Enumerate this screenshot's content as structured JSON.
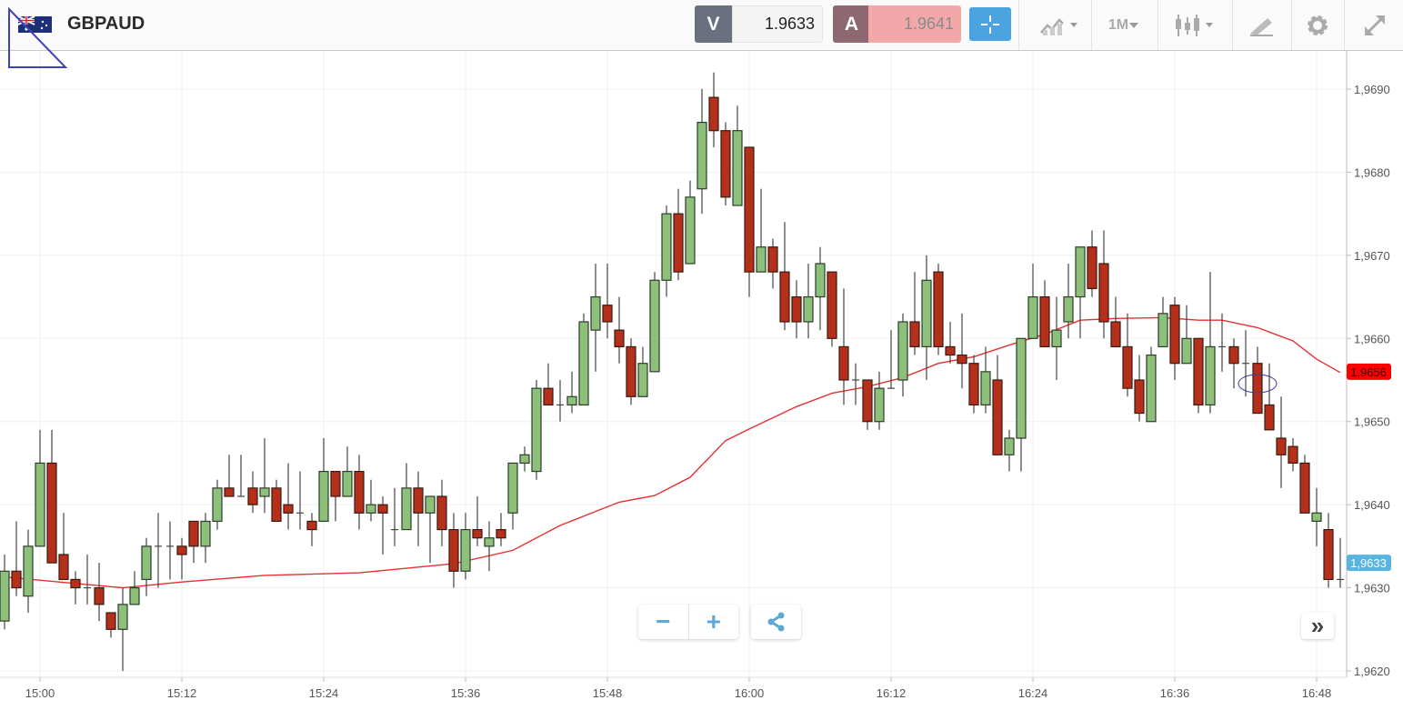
{
  "header": {
    "flag_icon": "gb-au-flag-icon",
    "symbol": "GBPAUD",
    "sell": {
      "label": "V",
      "price": "1.9633"
    },
    "buy": {
      "label": "A",
      "price": "1.9641"
    },
    "timeframe": "1M",
    "icons": [
      "crosshair-icon",
      "chart-type-icon",
      "candlestick-icon",
      "drawing-tools-icon",
      "gear-icon",
      "expand-icon"
    ]
  },
  "controls": {
    "zoom_out": "−",
    "zoom_in": "+",
    "share_icon": "share-icon",
    "scroll_right": "»"
  },
  "colors": {
    "up": "#8dc07a",
    "down": "#b5301a",
    "moving_average": "#e53030",
    "sell": "#6b7080",
    "buy": "#8e6870",
    "accent": "#4aa3df"
  },
  "chart_data": {
    "type": "candlestick",
    "interval": "1M",
    "y_tick_labels": [
      "1,9620",
      "1,9630",
      "1,9640",
      "1,9650",
      "1,9660",
      "1,9670",
      "1,9680",
      "1,9690"
    ],
    "y_ticks": [
      1.962,
      1.963,
      1.964,
      1.965,
      1.966,
      1.967,
      1.968,
      1.969
    ],
    "x_tick_labels": [
      "15:00",
      "15:12",
      "15:24",
      "15:36",
      "15:48",
      "16:00",
      "16:12",
      "16:24",
      "16:36",
      "16:48"
    ],
    "ylim": [
      1.962,
      1.969
    ],
    "grid": true,
    "price_tags": [
      {
        "label": "1,9656",
        "value": 1.9656,
        "color": "#ff0000"
      },
      {
        "label": "1,9633",
        "value": 1.9633,
        "color": "#5ab4e0"
      }
    ],
    "candles_columns": [
      "time",
      "open",
      "high",
      "low",
      "close"
    ],
    "candles": [
      [
        "14:57",
        1.9626,
        1.9634,
        1.9625,
        1.9632
      ],
      [
        "14:58",
        1.9632,
        1.9638,
        1.9629,
        1.963
      ],
      [
        "14:59",
        1.9629,
        1.9637,
        1.9627,
        1.9635
      ],
      [
        "15:00",
        1.9635,
        1.9649,
        1.9635,
        1.9645
      ],
      [
        "15:01",
        1.9645,
        1.9649,
        1.9633,
        1.9633
      ],
      [
        "15:02",
        1.9634,
        1.9639,
        1.9631,
        1.9631
      ],
      [
        "15:03",
        1.9631,
        1.9632,
        1.9628,
        1.963
      ],
      [
        "15:04",
        1.963,
        1.9634,
        1.9628,
        1.963
      ],
      [
        "15:05",
        1.963,
        1.9633,
        1.9626,
        1.9628
      ],
      [
        "15:06",
        1.9627,
        1.9627,
        1.9624,
        1.9625
      ],
      [
        "15:07",
        1.9625,
        1.963,
        1.962,
        1.9628
      ],
      [
        "15:08",
        1.9628,
        1.9632,
        1.9628,
        1.963
      ],
      [
        "15:09",
        1.9631,
        1.9636,
        1.9629,
        1.9635
      ],
      [
        "15:10",
        1.9635,
        1.9639,
        1.963,
        1.9635
      ],
      [
        "15:11",
        1.9635,
        1.9638,
        1.9631,
        1.9635
      ],
      [
        "15:12",
        1.9635,
        1.9636,
        1.9631,
        1.9634
      ],
      [
        "15:13",
        1.9638,
        1.9638,
        1.9633,
        1.9635
      ],
      [
        "15:14",
        1.9635,
        1.9639,
        1.9633,
        1.9638
      ],
      [
        "15:15",
        1.9638,
        1.9643,
        1.9637,
        1.9642
      ],
      [
        "15:16",
        1.9642,
        1.9646,
        1.9641,
        1.9641
      ],
      [
        "15:17",
        1.9641,
        1.9646,
        1.9641,
        1.9641
      ],
      [
        "15:18",
        1.9642,
        1.9644,
        1.9639,
        1.964
      ],
      [
        "15:19",
        1.9641,
        1.9648,
        1.9639,
        1.9642
      ],
      [
        "15:20",
        1.9642,
        1.9643,
        1.9638,
        1.9638
      ],
      [
        "15:21",
        1.964,
        1.9645,
        1.9637,
        1.9639
      ],
      [
        "15:22",
        1.9639,
        1.9644,
        1.9637,
        1.9639
      ],
      [
        "15:23",
        1.9638,
        1.9639,
        1.9635,
        1.9637
      ],
      [
        "15:24",
        1.9638,
        1.9648,
        1.9638,
        1.9644
      ],
      [
        "15:25",
        1.9644,
        1.9644,
        1.9638,
        1.9641
      ],
      [
        "15:26",
        1.9641,
        1.9647,
        1.9641,
        1.9644
      ],
      [
        "15:27",
        1.9644,
        1.9646,
        1.9637,
        1.9639
      ],
      [
        "15:28",
        1.9639,
        1.9643,
        1.9638,
        1.964
      ],
      [
        "15:29",
        1.964,
        1.9641,
        1.9634,
        1.9639
      ],
      [
        "15:30",
        1.9637,
        1.9642,
        1.9635,
        1.9637
      ],
      [
        "15:31",
        1.9637,
        1.9645,
        1.9637,
        1.9642
      ],
      [
        "15:32",
        1.9642,
        1.9644,
        1.9635,
        1.9639
      ],
      [
        "15:33",
        1.9639,
        1.9641,
        1.9633,
        1.9641
      ],
      [
        "15:34",
        1.9641,
        1.9643,
        1.9635,
        1.9637
      ],
      [
        "15:35",
        1.9637,
        1.9639,
        1.963,
        1.9632
      ],
      [
        "15:36",
        1.9632,
        1.9639,
        1.9631,
        1.9637
      ],
      [
        "15:37",
        1.9637,
        1.9641,
        1.9635,
        1.9636
      ],
      [
        "15:38",
        1.9635,
        1.9638,
        1.9632,
        1.9636
      ],
      [
        "15:39",
        1.9637,
        1.9639,
        1.9635,
        1.9636
      ],
      [
        "15:40",
        1.9639,
        1.9645,
        1.9637,
        1.9645
      ],
      [
        "15:41",
        1.9645,
        1.9647,
        1.9644,
        1.9646
      ],
      [
        "15:42",
        1.9644,
        1.9655,
        1.9643,
        1.9654
      ],
      [
        "15:43",
        1.9654,
        1.9657,
        1.9652,
        1.9652
      ],
      [
        "15:44",
        1.9652,
        1.9655,
        1.965,
        1.9652
      ],
      [
        "15:45",
        1.9652,
        1.9656,
        1.9651,
        1.9653
      ],
      [
        "15:46",
        1.9652,
        1.9663,
        1.9652,
        1.9662
      ],
      [
        "15:47",
        1.9661,
        1.9669,
        1.9656,
        1.9665
      ],
      [
        "15:48",
        1.9664,
        1.9669,
        1.966,
        1.9662
      ],
      [
        "15:49",
        1.9661,
        1.9665,
        1.9657,
        1.9659
      ],
      [
        "15:50",
        1.9659,
        1.966,
        1.9652,
        1.9653
      ],
      [
        "15:51",
        1.9653,
        1.9659,
        1.9653,
        1.9657
      ],
      [
        "15:52",
        1.9656,
        1.9668,
        1.9656,
        1.9667
      ],
      [
        "15:53",
        1.9667,
        1.9676,
        1.9665,
        1.9675
      ],
      [
        "15:54",
        1.9675,
        1.9678,
        1.9667,
        1.9668
      ],
      [
        "15:55",
        1.9669,
        1.9679,
        1.9669,
        1.9677
      ],
      [
        "15:56",
        1.9678,
        1.969,
        1.9675,
        1.9686
      ],
      [
        "15:57",
        1.9689,
        1.9692,
        1.9683,
        1.9685
      ],
      [
        "15:58",
        1.9685,
        1.9686,
        1.9676,
        1.9677
      ],
      [
        "15:59",
        1.9676,
        1.9688,
        1.9676,
        1.9685
      ],
      [
        "16:00",
        1.9683,
        1.9683,
        1.9665,
        1.9668
      ],
      [
        "16:01",
        1.9668,
        1.9678,
        1.9668,
        1.9671
      ],
      [
        "16:02",
        1.9671,
        1.9672,
        1.9666,
        1.9668
      ],
      [
        "16:03",
        1.9668,
        1.9674,
        1.9661,
        1.9662
      ],
      [
        "16:04",
        1.9665,
        1.9667,
        1.966,
        1.9662
      ],
      [
        "16:05",
        1.9662,
        1.9669,
        1.966,
        1.9665
      ],
      [
        "16:06",
        1.9665,
        1.9671,
        1.9661,
        1.9669
      ],
      [
        "16:07",
        1.9668,
        1.9668,
        1.9659,
        1.966
      ],
      [
        "16:08",
        1.9659,
        1.9666,
        1.9652,
        1.9655
      ],
      [
        "16:09",
        1.9655,
        1.9657,
        1.9652,
        1.9655
      ],
      [
        "16:10",
        1.9655,
        1.9655,
        1.9649,
        1.965
      ],
      [
        "16:11",
        1.965,
        1.9656,
        1.9649,
        1.9654
      ],
      [
        "16:12",
        1.9654,
        1.9661,
        1.9654,
        1.9654
      ],
      [
        "16:13",
        1.9655,
        1.9663,
        1.9653,
        1.9662
      ],
      [
        "16:14",
        1.9662,
        1.9668,
        1.9658,
        1.9659
      ],
      [
        "16:15",
        1.9659,
        1.967,
        1.9655,
        1.9667
      ],
      [
        "16:16",
        1.9668,
        1.9669,
        1.9658,
        1.9659
      ],
      [
        "16:17",
        1.9659,
        1.9662,
        1.9657,
        1.9658
      ],
      [
        "16:18",
        1.9658,
        1.9663,
        1.9654,
        1.9657
      ],
      [
        "16:19",
        1.9657,
        1.9658,
        1.9651,
        1.9652
      ],
      [
        "16:20",
        1.9652,
        1.9659,
        1.9651,
        1.9656
      ],
      [
        "16:21",
        1.9655,
        1.9658,
        1.9646,
        1.9646
      ],
      [
        "16:22",
        1.9646,
        1.9649,
        1.9644,
        1.9648
      ],
      [
        "16:23",
        1.9648,
        1.966,
        1.9644,
        1.966
      ],
      [
        "16:24",
        1.966,
        1.9669,
        1.966,
        1.9665
      ],
      [
        "16:25",
        1.9665,
        1.9667,
        1.9659,
        1.9659
      ],
      [
        "16:26",
        1.9659,
        1.9665,
        1.9655,
        1.9661
      ],
      [
        "16:27",
        1.9662,
        1.9669,
        1.966,
        1.9665
      ],
      [
        "16:28",
        1.9665,
        1.9671,
        1.966,
        1.9671
      ],
      [
        "16:29",
        1.9671,
        1.9673,
        1.9665,
        1.9666
      ],
      [
        "16:30",
        1.9669,
        1.9673,
        1.966,
        1.9662
      ],
      [
        "16:31",
        1.9662,
        1.9665,
        1.9659,
        1.9659
      ],
      [
        "16:32",
        1.9659,
        1.9663,
        1.9653,
        1.9654
      ],
      [
        "16:33",
        1.9655,
        1.9658,
        1.965,
        1.9651
      ],
      [
        "16:34",
        1.965,
        1.9659,
        1.965,
        1.9658
      ],
      [
        "16:35",
        1.9659,
        1.9665,
        1.9659,
        1.9663
      ],
      [
        "16:36",
        1.9664,
        1.9665,
        1.9655,
        1.9657
      ],
      [
        "16:37",
        1.9657,
        1.9664,
        1.9657,
        1.966
      ],
      [
        "16:38",
        1.966,
        1.966,
        1.9651,
        1.9652
      ],
      [
        "16:39",
        1.9652,
        1.9668,
        1.9651,
        1.9659
      ],
      [
        "16:40",
        1.9659,
        1.9663,
        1.9656,
        1.9659
      ],
      [
        "16:41",
        1.9659,
        1.966,
        1.9654,
        1.9657
      ],
      [
        "16:42",
        1.9657,
        1.9661,
        1.9653,
        1.9657
      ],
      [
        "16:43",
        1.9657,
        1.9659,
        1.9651,
        1.9651
      ],
      [
        "16:44",
        1.9652,
        1.9657,
        1.9649,
        1.9649
      ],
      [
        "16:45",
        1.9648,
        1.9653,
        1.9642,
        1.9646
      ],
      [
        "16:46",
        1.9647,
        1.9648,
        1.9644,
        1.9645
      ],
      [
        "16:47",
        1.9645,
        1.9646,
        1.9639,
        1.9639
      ],
      [
        "16:48",
        1.9638,
        1.9642,
        1.9635,
        1.9639
      ],
      [
        "16:49",
        1.9637,
        1.9639,
        1.963,
        1.9631
      ],
      [
        "16:50",
        1.9631,
        1.9636,
        1.963,
        1.9631
      ]
    ],
    "moving_average": [
      [
        "14:57",
        1.96313
      ],
      [
        "15:07",
        1.963
      ],
      [
        "15:12",
        1.96307
      ],
      [
        "15:19",
        1.96315
      ],
      [
        "15:27",
        1.96318
      ],
      [
        "15:35",
        1.96329
      ],
      [
        "15:40",
        1.96345
      ],
      [
        "15:44",
        1.96375
      ],
      [
        "15:49",
        1.96403
      ],
      [
        "15:52",
        1.96411
      ],
      [
        "15:55",
        1.96433
      ],
      [
        "15:58",
        1.96477
      ],
      [
        "16:00",
        1.96491
      ],
      [
        "16:04",
        1.96518
      ],
      [
        "16:07",
        1.96534
      ],
      [
        "16:10",
        1.96542
      ],
      [
        "16:13",
        1.96553
      ],
      [
        "16:16",
        1.9657
      ],
      [
        "16:19",
        1.96578
      ],
      [
        "16:22",
        1.96592
      ],
      [
        "16:25",
        1.96605
      ],
      [
        "16:28",
        1.96622
      ],
      [
        "16:31",
        1.96624
      ],
      [
        "16:35",
        1.96625
      ],
      [
        "16:38",
        1.96622
      ],
      [
        "16:40",
        1.96622
      ],
      [
        "16:43",
        1.96613
      ],
      [
        "16:46",
        1.96597
      ],
      [
        "16:48",
        1.96575
      ],
      [
        "16:50",
        1.96559
      ]
    ]
  }
}
